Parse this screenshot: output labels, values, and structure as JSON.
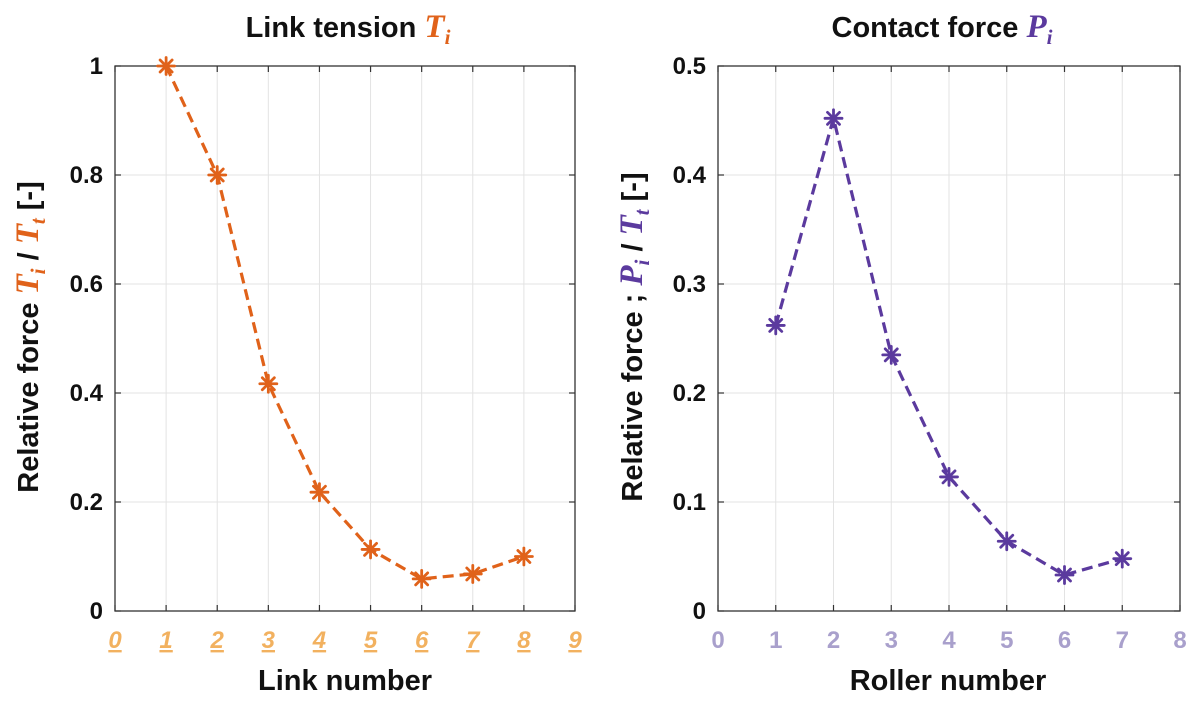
{
  "colors": {
    "link_series": "#e0621a",
    "link_ticks": "#f2b15f",
    "roller_series": "#5b3a9e",
    "roller_ticks": "#a9a0cc",
    "axis": "#333333",
    "grid": "#e3e3e3"
  },
  "chart_data": [
    {
      "type": "line",
      "title": "Link tension",
      "title_symbol": "T",
      "title_subscript": "i",
      "xlabel": "Link number",
      "ylabel_prefix": "Relative force ",
      "ylabel_sym1": "T",
      "ylabel_sub1": "i",
      "ylabel_sep": " / ",
      "ylabel_sym2": "T",
      "ylabel_sub2": "t",
      "ylabel_suffix": "  [-]",
      "xlim": [
        0,
        9
      ],
      "ylim": [
        0,
        1
      ],
      "grid": true,
      "marker": "asterisk",
      "line_style": "dashed",
      "x_tick_labels": [
        "0",
        "1",
        "2",
        "3",
        "4",
        "5",
        "6",
        "7",
        "8",
        "9"
      ],
      "y_tick_labels": [
        "0",
        "0.2",
        "0.4",
        "0.6",
        "0.8",
        "1"
      ],
      "x_tick_values": [
        0,
        1,
        2,
        3,
        4,
        5,
        6,
        7,
        8,
        9
      ],
      "y_tick_values": [
        0,
        0.2,
        0.4,
        0.6,
        0.8,
        1
      ],
      "series": [
        {
          "x": [
            1,
            2,
            3,
            4,
            5,
            6,
            7,
            8
          ],
          "y": [
            1.0,
            0.8,
            0.417,
            0.218,
            0.113,
            0.059,
            0.068,
            0.1
          ]
        }
      ]
    },
    {
      "type": "line",
      "title": "Contact force",
      "title_symbol": "P",
      "title_subscript": "i",
      "xlabel": "Roller number",
      "ylabel_prefix": "Relative force ; ",
      "ylabel_sym1": "P",
      "ylabel_sub1": "i",
      "ylabel_sep": " / ",
      "ylabel_sym2": "T",
      "ylabel_sub2": "t",
      "ylabel_suffix": "  [-]",
      "xlim": [
        0,
        8
      ],
      "ylim": [
        0,
        0.5
      ],
      "grid": true,
      "marker": "asterisk",
      "line_style": "dashed",
      "x_tick_labels": [
        "0",
        "1",
        "2",
        "3",
        "4",
        "5",
        "6",
        "7",
        "8"
      ],
      "y_tick_labels": [
        "0",
        "0.1",
        "0.2",
        "0.3",
        "0.4",
        "0.5"
      ],
      "x_tick_values": [
        0,
        1,
        2,
        3,
        4,
        5,
        6,
        7,
        8
      ],
      "y_tick_values": [
        0,
        0.1,
        0.2,
        0.3,
        0.4,
        0.5
      ],
      "series": [
        {
          "x": [
            1,
            2,
            3,
            4,
            5,
            6,
            7
          ],
          "y": [
            0.262,
            0.452,
            0.235,
            0.123,
            0.064,
            0.033,
            0.048
          ]
        }
      ]
    }
  ]
}
